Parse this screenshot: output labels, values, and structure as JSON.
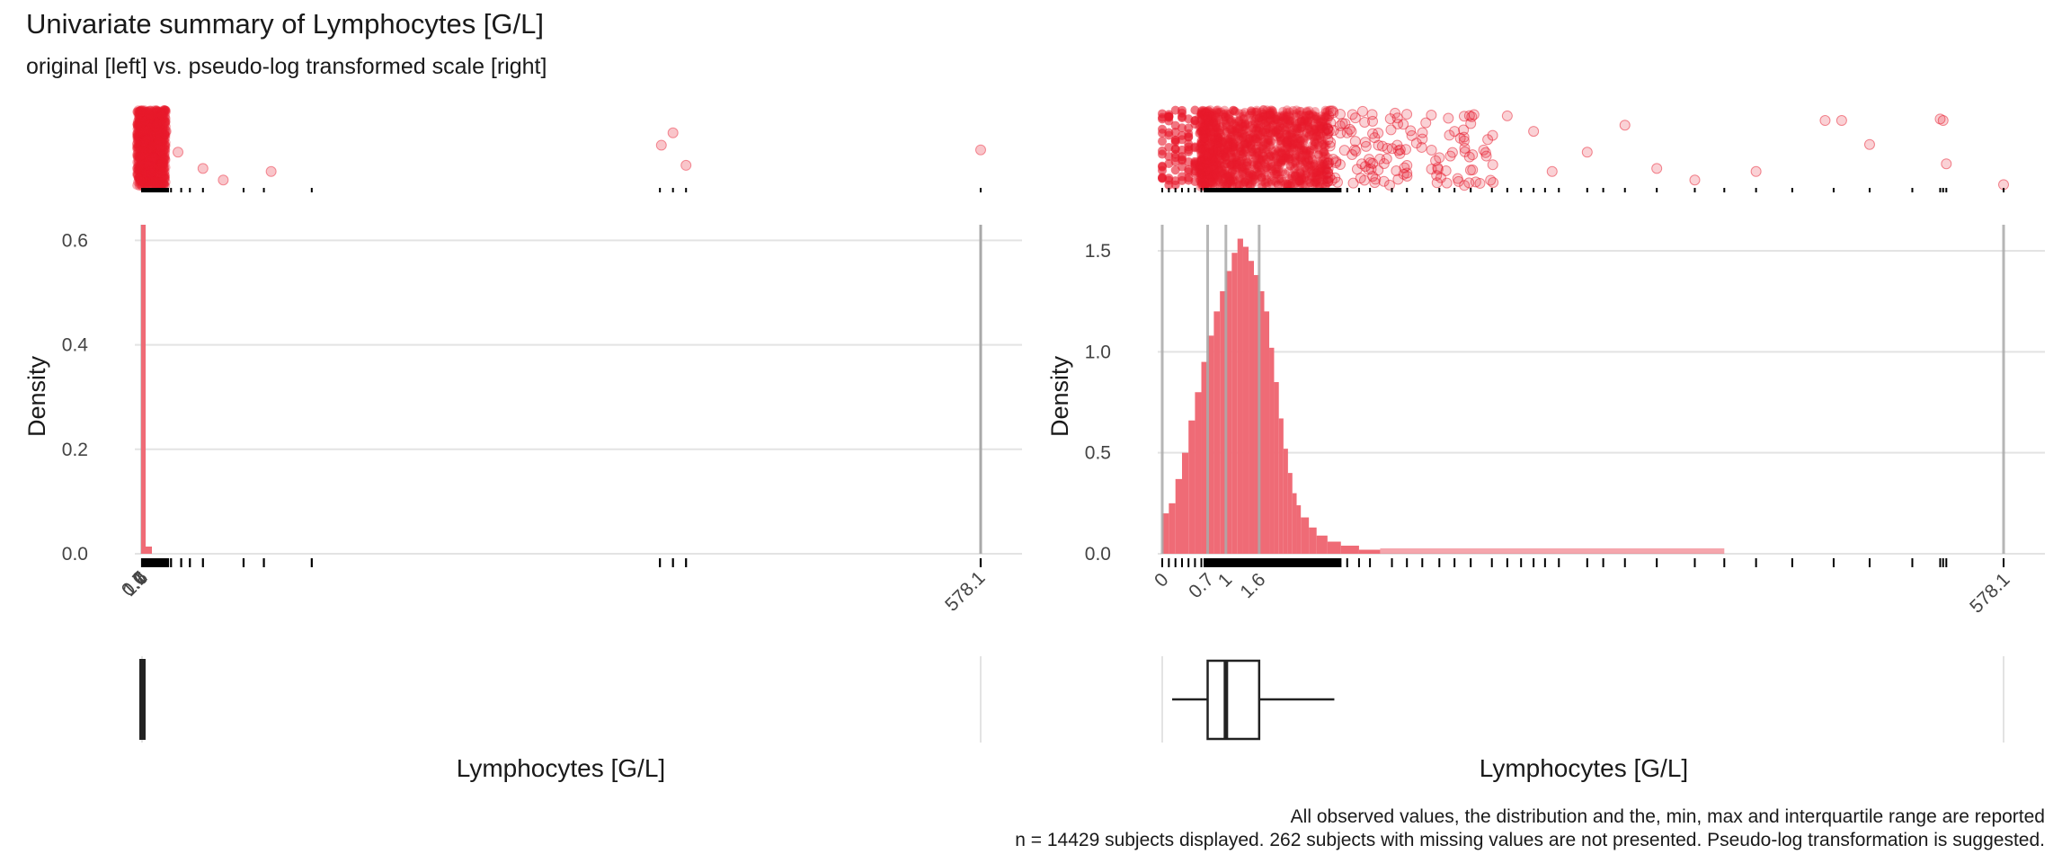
{
  "title": "Univariate summary of Lymphocytes [G/L]",
  "subtitle": "original [left] vs. pseudo-log transformed scale [right]",
  "caption_line1": "All observed values, the distribution and the, min, max and interquartile range are reported",
  "caption_line2": "n = 14429 subjects displayed. 262 subjects with missing values are not presented. Pseudo-log transformation is suggested.",
  "colors": {
    "points": "#E8192C",
    "hist": "#EF6B76",
    "rug": "#000000",
    "grid": "#E3E3E3",
    "vline": "#A9A9A9",
    "box": "#222222"
  },
  "chart_data": [
    {
      "type": "histogram",
      "panel": "original",
      "xlabel": "Lymphocytes [G/L]",
      "ylabel": "Density",
      "xlim": [
        0,
        578.1
      ],
      "ylim": [
        0,
        0.63
      ],
      "yticks": [
        0.0,
        0.2,
        0.4,
        0.6
      ],
      "ytick_labels": [
        "0.0",
        "0.2",
        "0.4",
        "0.6"
      ],
      "xtick_values": [
        0,
        0.7,
        1,
        1.6,
        578.1
      ],
      "xtick_labels": [
        "0",
        "0.7",
        "1",
        "1.6",
        "578.1"
      ],
      "reference_lines": [
        0,
        0.7,
        1,
        1.6,
        578.1
      ],
      "density_peak": {
        "x": 1,
        "y": 0.63
      },
      "outliers": [
        {
          "x": 2.8,
          "y": 0.62
        },
        {
          "x": 4.3,
          "y": 0.28
        },
        {
          "x": 6.2,
          "y": 0.18
        },
        {
          "x": 8.0,
          "y": 0.38
        },
        {
          "x": 10.2,
          "y": 0.82
        },
        {
          "x": 13.5,
          "y": 0.92
        },
        {
          "x": 16.5,
          "y": 0.72
        },
        {
          "x": 24.8,
          "y": 0.45
        },
        {
          "x": 42.0,
          "y": 0.24
        },
        {
          "x": 56.0,
          "y": 0.09
        },
        {
          "x": 89.0,
          "y": 0.2
        },
        {
          "x": 358.0,
          "y": 0.54
        },
        {
          "x": 366.0,
          "y": 0.7
        },
        {
          "x": 375.0,
          "y": 0.28
        },
        {
          "x": 578.1,
          "y": 0.48
        }
      ],
      "rug_extra": [
        3.0,
        5.5,
        9.0,
        14.0,
        20.0,
        27.0,
        33.0,
        42.0,
        70.0,
        84.0,
        117.0,
        357.0,
        366.0,
        375.0,
        578.1
      ],
      "boxplot": {
        "min": 0,
        "q1": 0.7,
        "median": 1,
        "q3": 1.6,
        "whisker_high": 3.3,
        "max": 578.1
      }
    },
    {
      "type": "histogram",
      "panel": "pseudo-log",
      "xlabel": "Lymphocytes [G/L]",
      "ylabel": "Density",
      "xlim": [
        0,
        578.1
      ],
      "ylim": [
        0,
        1.6
      ],
      "yticks": [
        0.0,
        0.5,
        1.0,
        1.5
      ],
      "ytick_labels": [
        "0.0",
        "0.5",
        "1.0",
        "1.5"
      ],
      "xtick_values": [
        0,
        0.7,
        1,
        1.6,
        578.1
      ],
      "xtick_labels": [
        "0",
        "0.7",
        "1",
        "1.6",
        "578.1"
      ],
      "reference_lines": [
        0,
        0.7,
        1,
        1.6,
        578.1
      ],
      "bins_x": [
        0,
        0.1,
        0.2,
        0.3,
        0.4,
        0.5,
        0.6,
        0.7,
        0.8,
        0.9,
        1.0,
        1.1,
        1.2,
        1.3,
        1.4,
        1.5,
        1.6,
        1.7,
        1.8,
        1.9,
        2.0,
        2.1,
        2.2,
        2.3,
        2.4,
        2.5,
        2.7,
        2.9,
        3.2,
        3.6,
        4.2,
        5.0
      ],
      "bins_density": [
        0.2,
        0.25,
        0.37,
        0.5,
        0.66,
        0.8,
        0.95,
        1.08,
        1.2,
        1.3,
        1.4,
        1.49,
        1.56,
        1.52,
        1.45,
        1.38,
        1.3,
        1.2,
        1.02,
        0.85,
        0.67,
        0.52,
        0.4,
        0.3,
        0.24,
        0.18,
        0.13,
        0.09,
        0.06,
        0.04,
        0.02
      ],
      "rug_extra": [
        3.8,
        4.2,
        4.6,
        5.5,
        6.2,
        7.0,
        8.0,
        9.0,
        10.2,
        12.0,
        13.5,
        15.0,
        16.5,
        18.0,
        20.0,
        24.8,
        28.0,
        33.0,
        42.0,
        56.0,
        70.0,
        89.0,
        117.0,
        160.0,
        210.0,
        290.0,
        358.0,
        366.0,
        375.0,
        578.1
      ],
      "outliers": [
        {
          "x": 3.8,
          "y": 0.7
        },
        {
          "x": 4.3,
          "y": 0.3
        },
        {
          "x": 4.7,
          "y": 0.85
        },
        {
          "x": 5.3,
          "y": 0.5
        },
        {
          "x": 6.2,
          "y": 0.18
        },
        {
          "x": 7.0,
          "y": 0.62
        },
        {
          "x": 8.0,
          "y": 0.38
        },
        {
          "x": 9.0,
          "y": 0.72
        },
        {
          "x": 10.2,
          "y": 0.82
        },
        {
          "x": 11.5,
          "y": 0.4
        },
        {
          "x": 13.5,
          "y": 0.92
        },
        {
          "x": 16.5,
          "y": 0.72
        },
        {
          "x": 19.0,
          "y": 0.2
        },
        {
          "x": 24.8,
          "y": 0.45
        },
        {
          "x": 33.0,
          "y": 0.8
        },
        {
          "x": 42.0,
          "y": 0.24
        },
        {
          "x": 56.0,
          "y": 0.09
        },
        {
          "x": 89.0,
          "y": 0.2
        },
        {
          "x": 150.0,
          "y": 0.86
        },
        {
          "x": 170.0,
          "y": 0.86
        },
        {
          "x": 210.0,
          "y": 0.55
        },
        {
          "x": 358.0,
          "y": 0.88
        },
        {
          "x": 366.0,
          "y": 0.86
        },
        {
          "x": 375.0,
          "y": 0.3
        },
        {
          "x": 578.1,
          "y": 0.03
        }
      ],
      "boxplot": {
        "min": 0,
        "q1": 0.7,
        "median": 1,
        "q3": 1.6,
        "whisker_low": 0.15,
        "whisker_high": 3.4,
        "max": 578.1
      }
    }
  ]
}
